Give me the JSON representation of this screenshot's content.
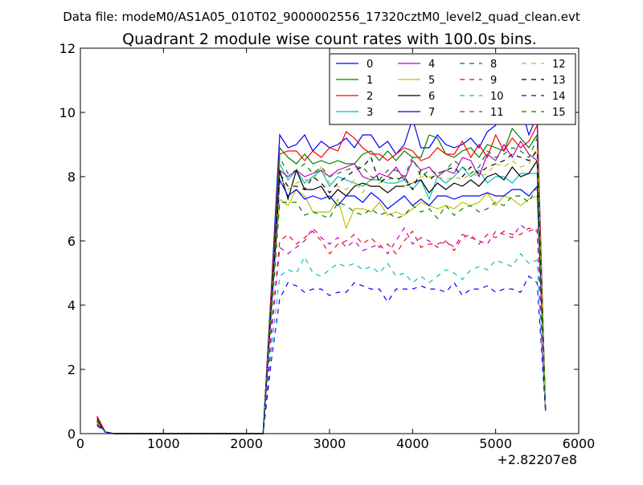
{
  "header": "Data file: modeM0/AS1A05_010T02_9000002556_17320cztM0_level2_quad_clean.evt",
  "chart_data": {
    "type": "line",
    "title": "Quadrant 2 module wise count rates with 100.0s bins.",
    "xlabel": "",
    "ylabel": "",
    "x_offset_label": "+2.82207e8",
    "xlim": [
      0,
      6000
    ],
    "ylim": [
      0,
      12
    ],
    "xticks": [
      0,
      1000,
      2000,
      3000,
      4000,
      5000,
      6000
    ],
    "yticks": [
      0,
      2,
      4,
      6,
      8,
      10,
      12
    ],
    "grid": false,
    "legend_position": "top-right",
    "legend_columns": 4,
    "x": [
      200,
      300,
      400,
      500,
      600,
      700,
      800,
      900,
      1000,
      1100,
      1200,
      1300,
      1400,
      1500,
      1600,
      1700,
      1800,
      1900,
      2000,
      2100,
      2200,
      2300,
      2400,
      2500,
      2600,
      2700,
      2800,
      2900,
      3000,
      3100,
      3200,
      3300,
      3400,
      3500,
      3600,
      3700,
      3800,
      3900,
      4000,
      4100,
      4200,
      4300,
      4400,
      4500,
      4600,
      4700,
      4800,
      4900,
      5000,
      5100,
      5200,
      5300,
      5400,
      5500,
      5600
    ],
    "series": [
      {
        "name": "0",
        "color": "#0000ff",
        "dash": "solid",
        "values": [
          0.5,
          0.05,
          0,
          0,
          0,
          0,
          0,
          0,
          0,
          0,
          0,
          0,
          0,
          0,
          0,
          0,
          0,
          0,
          0,
          0,
          0,
          4.6,
          9.3,
          8.9,
          9.0,
          9.3,
          8.8,
          9.1,
          8.9,
          9.0,
          9.2,
          8.9,
          9.3,
          9.3,
          8.9,
          9.1,
          8.7,
          9.0,
          9.8,
          8.9,
          8.9,
          9.3,
          9.0,
          8.9,
          9.0,
          9.2,
          8.9,
          9.4,
          9.6,
          10.3,
          10.1,
          10.2,
          9.3,
          9.9,
          0.7
        ]
      },
      {
        "name": "1",
        "color": "#008000",
        "dash": "solid",
        "values": [
          0.45,
          0.05,
          0,
          0,
          0,
          0,
          0,
          0,
          0,
          0,
          0,
          0,
          0,
          0,
          0,
          0,
          0,
          0,
          0,
          0,
          0,
          4.4,
          8.9,
          8.6,
          8.4,
          8.7,
          8.4,
          8.5,
          8.4,
          8.5,
          8.4,
          8.4,
          8.7,
          8.8,
          8.5,
          8.8,
          8.5,
          8.8,
          8.6,
          8.6,
          9.3,
          9.2,
          8.7,
          8.6,
          8.8,
          8.9,
          8.6,
          9.0,
          8.9,
          8.8,
          9.5,
          9.2,
          8.9,
          9.3,
          0.7
        ]
      },
      {
        "name": "2",
        "color": "#ff0000",
        "dash": "solid",
        "values": [
          0.55,
          0.05,
          0,
          0,
          0,
          0,
          0,
          0,
          0,
          0,
          0,
          0,
          0,
          0,
          0,
          0,
          0,
          0,
          0,
          0,
          0,
          4.5,
          8.7,
          8.8,
          8.8,
          8.5,
          8.8,
          8.6,
          8.9,
          8.8,
          9.4,
          9.2,
          8.9,
          8.7,
          8.7,
          8.5,
          8.7,
          8.9,
          8.8,
          8.5,
          8.6,
          8.9,
          8.7,
          8.7,
          9.1,
          8.6,
          9.0,
          8.6,
          9.3,
          8.8,
          9.2,
          8.9,
          9.1,
          9.6,
          0.7
        ]
      },
      {
        "name": "3",
        "color": "#00bfbf",
        "dash": "solid",
        "values": [
          0.4,
          0.05,
          0,
          0,
          0,
          0,
          0,
          0,
          0,
          0,
          0,
          0,
          0,
          0,
          0,
          0,
          0,
          0,
          0,
          0,
          0,
          4.1,
          8.4,
          7.9,
          8.2,
          7.8,
          8.0,
          8.2,
          7.7,
          8.0,
          7.9,
          7.8,
          7.7,
          7.9,
          7.9,
          7.8,
          7.8,
          7.9,
          7.6,
          7.9,
          7.3,
          8.0,
          7.8,
          8.0,
          8.3,
          8.0,
          8.2,
          7.8,
          8.0,
          8.0,
          7.8,
          8.1,
          8.1,
          8.1,
          0.7
        ]
      },
      {
        "name": "4",
        "color": "#bf00bf",
        "dash": "solid",
        "values": [
          0.4,
          0.05,
          0,
          0,
          0,
          0,
          0,
          0,
          0,
          0,
          0,
          0,
          0,
          0,
          0,
          0,
          0,
          0,
          0,
          0,
          0,
          4.2,
          8.2,
          8.0,
          8.2,
          8.0,
          8.1,
          8.2,
          8.0,
          8.2,
          8.3,
          8.4,
          8.0,
          7.9,
          8.1,
          8.0,
          8.3,
          7.9,
          8.5,
          8.2,
          8.3,
          8.0,
          8.2,
          8.1,
          8.6,
          8.5,
          8.0,
          8.7,
          8.5,
          9.0,
          8.6,
          9.1,
          8.7,
          8.5,
          0.7
        ]
      },
      {
        "name": "5",
        "color": "#bfbf00",
        "dash": "solid",
        "values": [
          0.35,
          0.05,
          0,
          0,
          0,
          0,
          0,
          0,
          0,
          0,
          0,
          0,
          0,
          0,
          0,
          0,
          0,
          0,
          0,
          0,
          0,
          3.9,
          7.3,
          7.1,
          7.6,
          7.4,
          6.9,
          6.9,
          6.9,
          7.3,
          6.4,
          7.0,
          7.0,
          6.9,
          7.2,
          6.8,
          6.9,
          6.8,
          7.0,
          7.2,
          7.1,
          7.0,
          7.1,
          7.0,
          7.2,
          7.1,
          7.2,
          7.5,
          7.1,
          7.4,
          7.3,
          7.1,
          7.3,
          7.4,
          0.7
        ]
      },
      {
        "name": "6",
        "color": "#000000",
        "dash": "solid",
        "values": [
          0.4,
          0.05,
          0,
          0,
          0,
          0,
          0,
          0,
          0,
          0,
          0,
          0,
          0,
          0,
          0,
          0,
          0,
          0,
          0,
          0,
          0,
          4.0,
          8.2,
          7.3,
          8.2,
          7.6,
          7.6,
          7.7,
          7.3,
          7.6,
          7.4,
          7.7,
          7.8,
          7.7,
          7.7,
          7.5,
          7.7,
          7.7,
          7.8,
          7.9,
          7.5,
          7.8,
          7.6,
          7.8,
          7.7,
          7.9,
          7.7,
          8.0,
          8.1,
          7.9,
          8.3,
          8.0,
          8.1,
          8.5,
          0.7
        ]
      },
      {
        "name": "7",
        "color": "#0000ff",
        "dash": "solid",
        "values": [
          0.35,
          0.05,
          0,
          0,
          0,
          0,
          0,
          0,
          0,
          0,
          0,
          0,
          0,
          0,
          0,
          0,
          0,
          0,
          0,
          0,
          0,
          3.9,
          7.9,
          7.4,
          7.6,
          7.3,
          7.4,
          7.3,
          7.4,
          7.1,
          7.4,
          7.4,
          7.2,
          7.5,
          7.3,
          7.0,
          7.2,
          7.4,
          7.1,
          7.3,
          7.1,
          7.4,
          7.4,
          7.3,
          7.4,
          7.4,
          7.4,
          7.5,
          7.4,
          7.4,
          7.6,
          7.6,
          7.4,
          7.7,
          0.7
        ]
      },
      {
        "name": "8",
        "color": "#008000",
        "dash": "dashed",
        "values": [
          0.35,
          0.05,
          0,
          0,
          0,
          0,
          0,
          0,
          0,
          0,
          0,
          0,
          0,
          0,
          0,
          0,
          0,
          0,
          0,
          0,
          0,
          3.6,
          7.2,
          7.2,
          7.2,
          6.8,
          6.9,
          6.8,
          6.7,
          7.2,
          7.1,
          6.9,
          6.8,
          7.0,
          6.8,
          6.9,
          6.7,
          6.8,
          7.1,
          6.9,
          7.0,
          6.7,
          7.1,
          6.8,
          7.0,
          7.1,
          6.9,
          7.0,
          7.2,
          7.1,
          7.4,
          7.4,
          7.2,
          7.7,
          0.7
        ]
      },
      {
        "name": "9",
        "color": "#ff0000",
        "dash": "dashed",
        "values": [
          0.3,
          0.05,
          0,
          0,
          0,
          0,
          0,
          0,
          0,
          0,
          0,
          0,
          0,
          0,
          0,
          0,
          0,
          0,
          0,
          0,
          0,
          3.2,
          6.0,
          6.2,
          5.9,
          6.1,
          6.3,
          6.0,
          5.6,
          5.9,
          6.0,
          6.2,
          5.9,
          6.1,
          5.8,
          5.9,
          5.6,
          6.0,
          6.3,
          5.8,
          5.9,
          5.9,
          6.0,
          5.7,
          6.1,
          6.2,
          5.9,
          6.2,
          6.1,
          6.3,
          6.2,
          6.2,
          6.4,
          6.3,
          0.7
        ]
      },
      {
        "name": "10",
        "color": "#00bfbf",
        "dash": "dashed",
        "values": [
          0.25,
          0.05,
          0,
          0,
          0,
          0,
          0,
          0,
          0,
          0,
          0,
          0,
          0,
          0,
          0,
          0,
          0,
          0,
          0,
          0,
          0,
          2.7,
          4.9,
          5.1,
          5.0,
          5.5,
          5.0,
          4.9,
          5.1,
          5.3,
          5.2,
          5.3,
          5.1,
          5.2,
          5.0,
          5.3,
          4.9,
          5.0,
          4.7,
          4.9,
          4.7,
          4.9,
          5.1,
          5.0,
          4.8,
          5.1,
          5.2,
          5.1,
          5.4,
          5.3,
          5.2,
          5.6,
          5.3,
          5.4,
          0.7
        ]
      },
      {
        "name": "11",
        "color": "#bf00bf",
        "dash": "dashed",
        "values": [
          0.3,
          0.05,
          0,
          0,
          0,
          0,
          0,
          0,
          0,
          0,
          0,
          0,
          0,
          0,
          0,
          0,
          0,
          0,
          0,
          0,
          0,
          3.1,
          5.8,
          5.6,
          5.8,
          6.0,
          6.4,
          6.1,
          5.9,
          6.1,
          5.8,
          6.0,
          5.7,
          5.8,
          5.9,
          5.6,
          6.0,
          6.4,
          5.9,
          6.1,
          6.0,
          5.8,
          6.0,
          5.8,
          6.2,
          6.1,
          6.0,
          5.9,
          6.3,
          6.2,
          6.1,
          6.5,
          6.3,
          6.4,
          0.7
        ]
      },
      {
        "name": "12",
        "color": "#bfbf00",
        "dash": "dashed",
        "values": [
          0.35,
          0.05,
          0,
          0,
          0,
          0,
          0,
          0,
          0,
          0,
          0,
          0,
          0,
          0,
          0,
          0,
          0,
          0,
          0,
          0,
          0,
          4.0,
          8.0,
          7.6,
          7.8,
          7.9,
          7.9,
          8.3,
          7.8,
          7.7,
          7.6,
          7.9,
          7.5,
          8.0,
          7.8,
          7.9,
          8.0,
          7.7,
          7.8,
          8.0,
          8.0,
          8.0,
          7.9,
          8.0,
          7.9,
          8.1,
          8.0,
          8.1,
          8.4,
          8.3,
          8.5,
          8.3,
          8.4,
          8.9,
          0.7
        ]
      },
      {
        "name": "13",
        "color": "#000000",
        "dash": "dashed",
        "values": [
          0.4,
          0.05,
          0,
          0,
          0,
          0,
          0,
          0,
          0,
          0,
          0,
          0,
          0,
          0,
          0,
          0,
          0,
          0,
          0,
          0,
          0,
          4.2,
          8.1,
          7.7,
          7.7,
          7.6,
          8.0,
          7.8,
          7.5,
          7.8,
          8.0,
          8.2,
          8.3,
          8.6,
          7.8,
          8.0,
          7.9,
          8.0,
          7.6,
          8.2,
          7.9,
          8.1,
          8.2,
          8.3,
          8.0,
          8.3,
          8.1,
          8.3,
          8.4,
          8.5,
          8.7,
          8.6,
          8.5,
          8.8,
          0.7
        ]
      },
      {
        "name": "14",
        "color": "#0000ff",
        "dash": "dashed",
        "values": [
          0.25,
          0.05,
          0,
          0,
          0,
          0,
          0,
          0,
          0,
          0,
          0,
          0,
          0,
          0,
          0,
          0,
          0,
          0,
          0,
          0,
          0,
          2.3,
          4.2,
          4.7,
          4.6,
          4.4,
          4.5,
          4.5,
          4.3,
          4.4,
          4.4,
          4.7,
          4.6,
          4.5,
          4.5,
          4.1,
          4.5,
          4.5,
          4.5,
          4.6,
          4.5,
          4.5,
          4.4,
          4.7,
          4.3,
          4.5,
          4.5,
          4.6,
          4.4,
          4.5,
          4.5,
          4.4,
          4.9,
          4.7,
          0.7
        ]
      },
      {
        "name": "15",
        "color": "#008000",
        "dash": "dashed",
        "values": [
          0.4,
          0.05,
          0,
          0,
          0,
          0,
          0,
          0,
          0,
          0,
          0,
          0,
          0,
          0,
          0,
          0,
          0,
          0,
          0,
          0,
          0,
          4.4,
          8.6,
          8.1,
          8.2,
          8.4,
          8.1,
          8.3,
          8.0,
          8.1,
          8.2,
          8.3,
          8.3,
          8.0,
          7.9,
          8.2,
          8.2,
          8.0,
          8.6,
          8.0,
          8.2,
          8.1,
          8.2,
          8.5,
          8.3,
          8.1,
          8.3,
          8.8,
          8.6,
          8.7,
          8.9,
          8.8,
          8.6,
          9.2,
          0.7
        ]
      }
    ]
  }
}
